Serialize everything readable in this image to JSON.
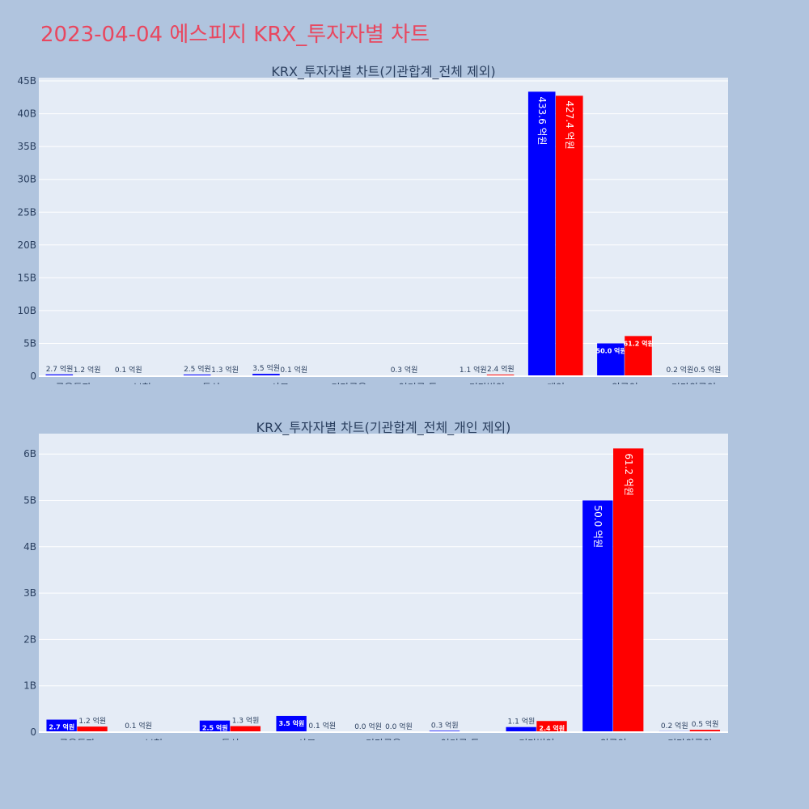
{
  "page": {
    "title": "2023-04-04 에스피지 KRX_투자자별 차트"
  },
  "colors": {
    "background": "#b0c4de",
    "plot_bg": "#e5ecf6",
    "grid": "#ffffff",
    "title": "#e8475f",
    "text": "#2a3f5f",
    "series_a": "#0000ff",
    "series_b": "#ff0000"
  },
  "chart_data": [
    {
      "type": "bar",
      "title": "KRX_투자자별 차트(기관합계_전체 제외)",
      "categories": [
        "금융투자",
        "보험",
        "투신",
        "사모",
        "기타금융",
        "연기금 등",
        "기타법인",
        "개인",
        "외국인",
        "기타외국인"
      ],
      "ylim": [
        0,
        45500000000
      ],
      "yticks": [
        0,
        5000000000,
        10000000000,
        15000000000,
        20000000000,
        25000000000,
        30000000000,
        35000000000,
        40000000000,
        45000000000
      ],
      "ytick_labels": [
        "0",
        "5B",
        "10B",
        "15B",
        "20B",
        "25B",
        "30B",
        "35B",
        "40B",
        "45B"
      ],
      "grid": true,
      "series": [
        {
          "color": "#0000ff",
          "values": [
            270000000,
            10000000,
            250000000,
            350000000,
            0,
            30000000,
            110000000,
            43360000000,
            5000000000,
            20000000
          ],
          "labels": [
            "2.7 억원",
            "0.1 억원",
            "2.5 억원",
            "3.5 억원",
            "",
            "0.3 억원",
            "1.1 억원",
            "433.6 억원",
            "50.0 억원",
            "0.2 억원"
          ]
        },
        {
          "color": "#ff0000",
          "values": [
            120000000,
            0,
            130000000,
            10000000,
            0,
            0,
            240000000,
            42740000000,
            6120000000,
            50000000
          ],
          "labels": [
            "1.2 억원",
            "",
            "1.3 억원",
            "0.1 억원",
            "",
            "",
            "2.4 억원",
            "427.4 억원",
            "61.2 억원",
            "0.5 억원"
          ]
        }
      ]
    },
    {
      "type": "bar",
      "title": "KRX_투자자별 차트(기관합계_전체_개인 제외)",
      "categories": [
        "금융투자",
        "보험",
        "투신",
        "사모",
        "기타금융",
        "연기금 등",
        "기타법인",
        "외국인",
        "기타외국인"
      ],
      "ylim": [
        0,
        6440000000
      ],
      "yticks": [
        0,
        1000000000,
        2000000000,
        3000000000,
        4000000000,
        5000000000,
        6000000000
      ],
      "ytick_labels": [
        "0",
        "1B",
        "2B",
        "3B",
        "4B",
        "5B",
        "6B"
      ],
      "grid": true,
      "series": [
        {
          "color": "#0000ff",
          "values": [
            270000000,
            10000000,
            250000000,
            350000000,
            0,
            30000000,
            110000000,
            5000000000,
            20000000
          ],
          "labels": [
            "2.7 억원",
            "0.1 억원",
            "2.5 억원",
            "3.5 억원",
            "0.0 억원",
            "0.3 억원",
            "1.1 억원",
            "50.0 억원",
            "0.2 억원"
          ]
        },
        {
          "color": "#ff0000",
          "values": [
            120000000,
            0,
            130000000,
            10000000,
            0,
            0,
            240000000,
            6120000000,
            50000000
          ],
          "labels": [
            "1.2 억원",
            "",
            "1.3 억원",
            "0.1 억원",
            "0.0 억원",
            "",
            "2.4 억원",
            "61.2 억원",
            "0.5 억원"
          ]
        }
      ]
    }
  ]
}
